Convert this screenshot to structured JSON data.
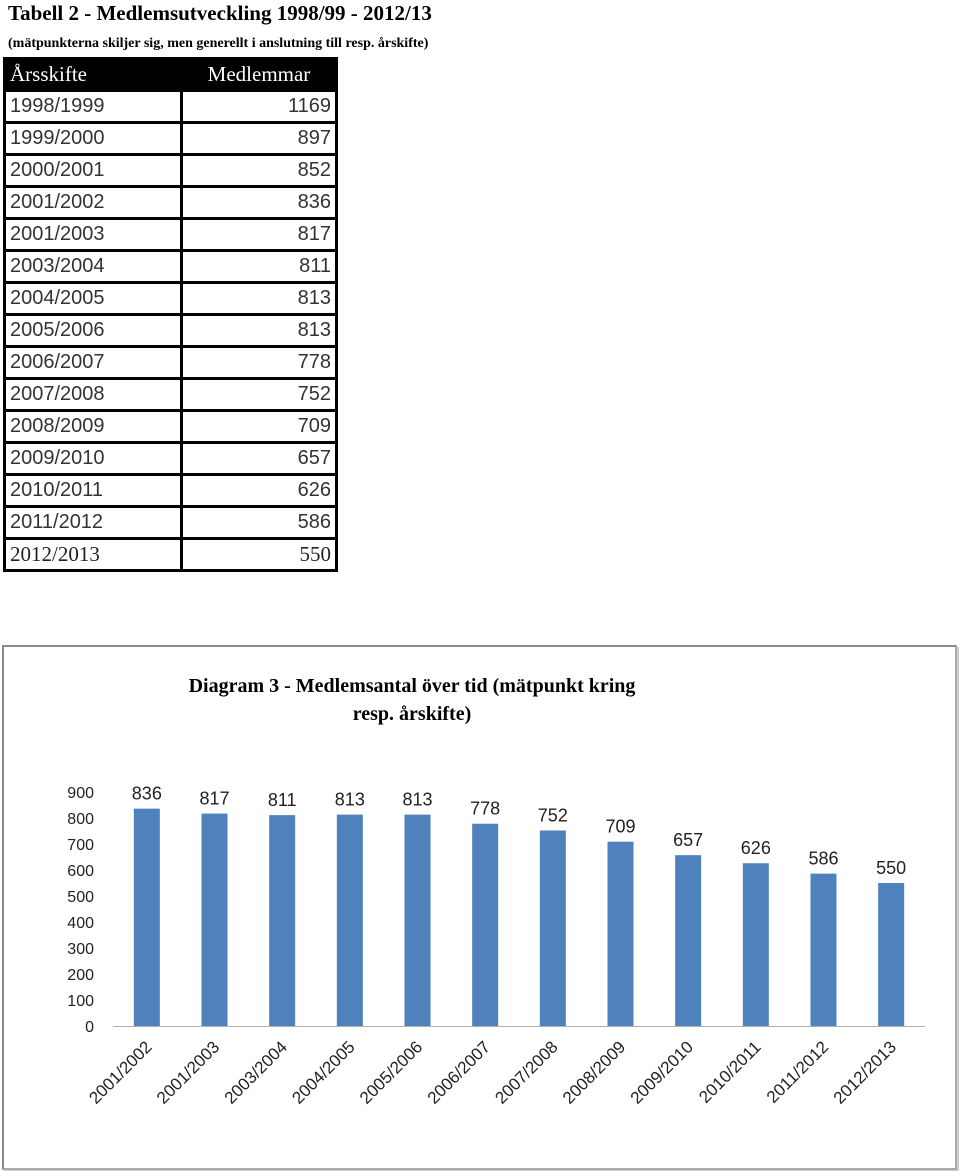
{
  "table": {
    "title": "Tabell 2 - Medlemsutveckling 1998/99 - 2012/13",
    "subtitle": "(mätpunkterna skiljer sig, men generellt i anslutning till resp. årskifte)",
    "headers": [
      "Årsskifte",
      "Medlemmar"
    ],
    "rows": [
      [
        "1998/1999",
        "1169"
      ],
      [
        "1999/2000",
        "897"
      ],
      [
        "2000/2001",
        "852"
      ],
      [
        "2001/2002",
        "836"
      ],
      [
        "2001/2003",
        "817"
      ],
      [
        "2003/2004",
        "811"
      ],
      [
        "2004/2005",
        "813"
      ],
      [
        "2005/2006",
        "813"
      ],
      [
        "2006/2007",
        "778"
      ],
      [
        "2007/2008",
        "752"
      ],
      [
        "2008/2009",
        "709"
      ],
      [
        "2009/2010",
        "657"
      ],
      [
        "2010/2011",
        "626"
      ],
      [
        "2011/2012",
        "586"
      ],
      [
        "2012/2013",
        "550"
      ]
    ]
  },
  "chart_data": {
    "type": "bar",
    "title": "Diagram 3 - Medlemsantal över tid (mätpunkt kring resp. årskifte)",
    "title_lines": [
      "Diagram 3 - Medlemsantal över tid (mätpunkt kring",
      "resp. årskifte)"
    ],
    "categories": [
      "2001/2002",
      "2001/2003",
      "2003/2004",
      "2004/2005",
      "2005/2006",
      "2006/2007",
      "2007/2008",
      "2008/2009",
      "2009/2010",
      "2010/2011",
      "2011/2012",
      "2012/2013"
    ],
    "values": [
      836,
      817,
      811,
      813,
      813,
      778,
      752,
      709,
      657,
      626,
      586,
      550
    ],
    "ylim": [
      0,
      900
    ],
    "yticks": [
      0,
      100,
      200,
      300,
      400,
      500,
      600,
      700,
      800,
      900
    ],
    "grid": false,
    "data_labels": true,
    "legend": "none",
    "bar_color": "#4F81BD"
  }
}
